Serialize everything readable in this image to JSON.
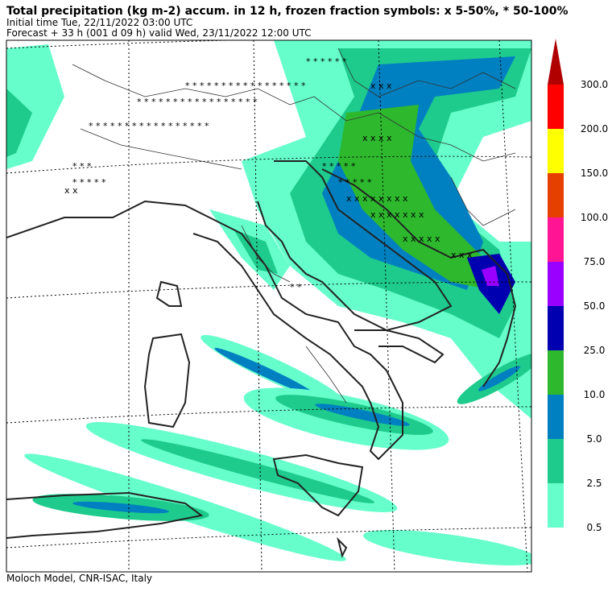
{
  "header": {
    "title": "Total precipitation (kg m-2) accum. in 12 h, frozen fraction symbols: x 5-50%, * 50-100%",
    "line2": "Initial time  Tue, 22/11/2022  03:00 UTC",
    "line3": "Forecast  +  33 h  (001 d 09 h)  valid Wed, 23/11/2022 12:00 UTC"
  },
  "colorbar": {
    "top_color": "#b00000",
    "levels": [
      {
        "label": "0.5",
        "color": "#66ffcc"
      },
      {
        "label": "2.5",
        "color": "#1ecb8c"
      },
      {
        "label": "5.0",
        "color": "#0080c0"
      },
      {
        "label": "10.0",
        "color": "#2eb82e"
      },
      {
        "label": "25.0",
        "color": "#0000b0"
      },
      {
        "label": "50.0",
        "color": "#9900ff"
      },
      {
        "label": "75.0",
        "color": "#ff1493"
      },
      {
        "label": "100.0",
        "color": "#e64000"
      },
      {
        "label": "150.0",
        "color": "#ffff00"
      },
      {
        "label": "200.0",
        "color": "#ff0000"
      },
      {
        "label": "300.0",
        "color": null
      }
    ]
  },
  "footer": "Moloch Model, CNR-ISAC, Italy"
}
